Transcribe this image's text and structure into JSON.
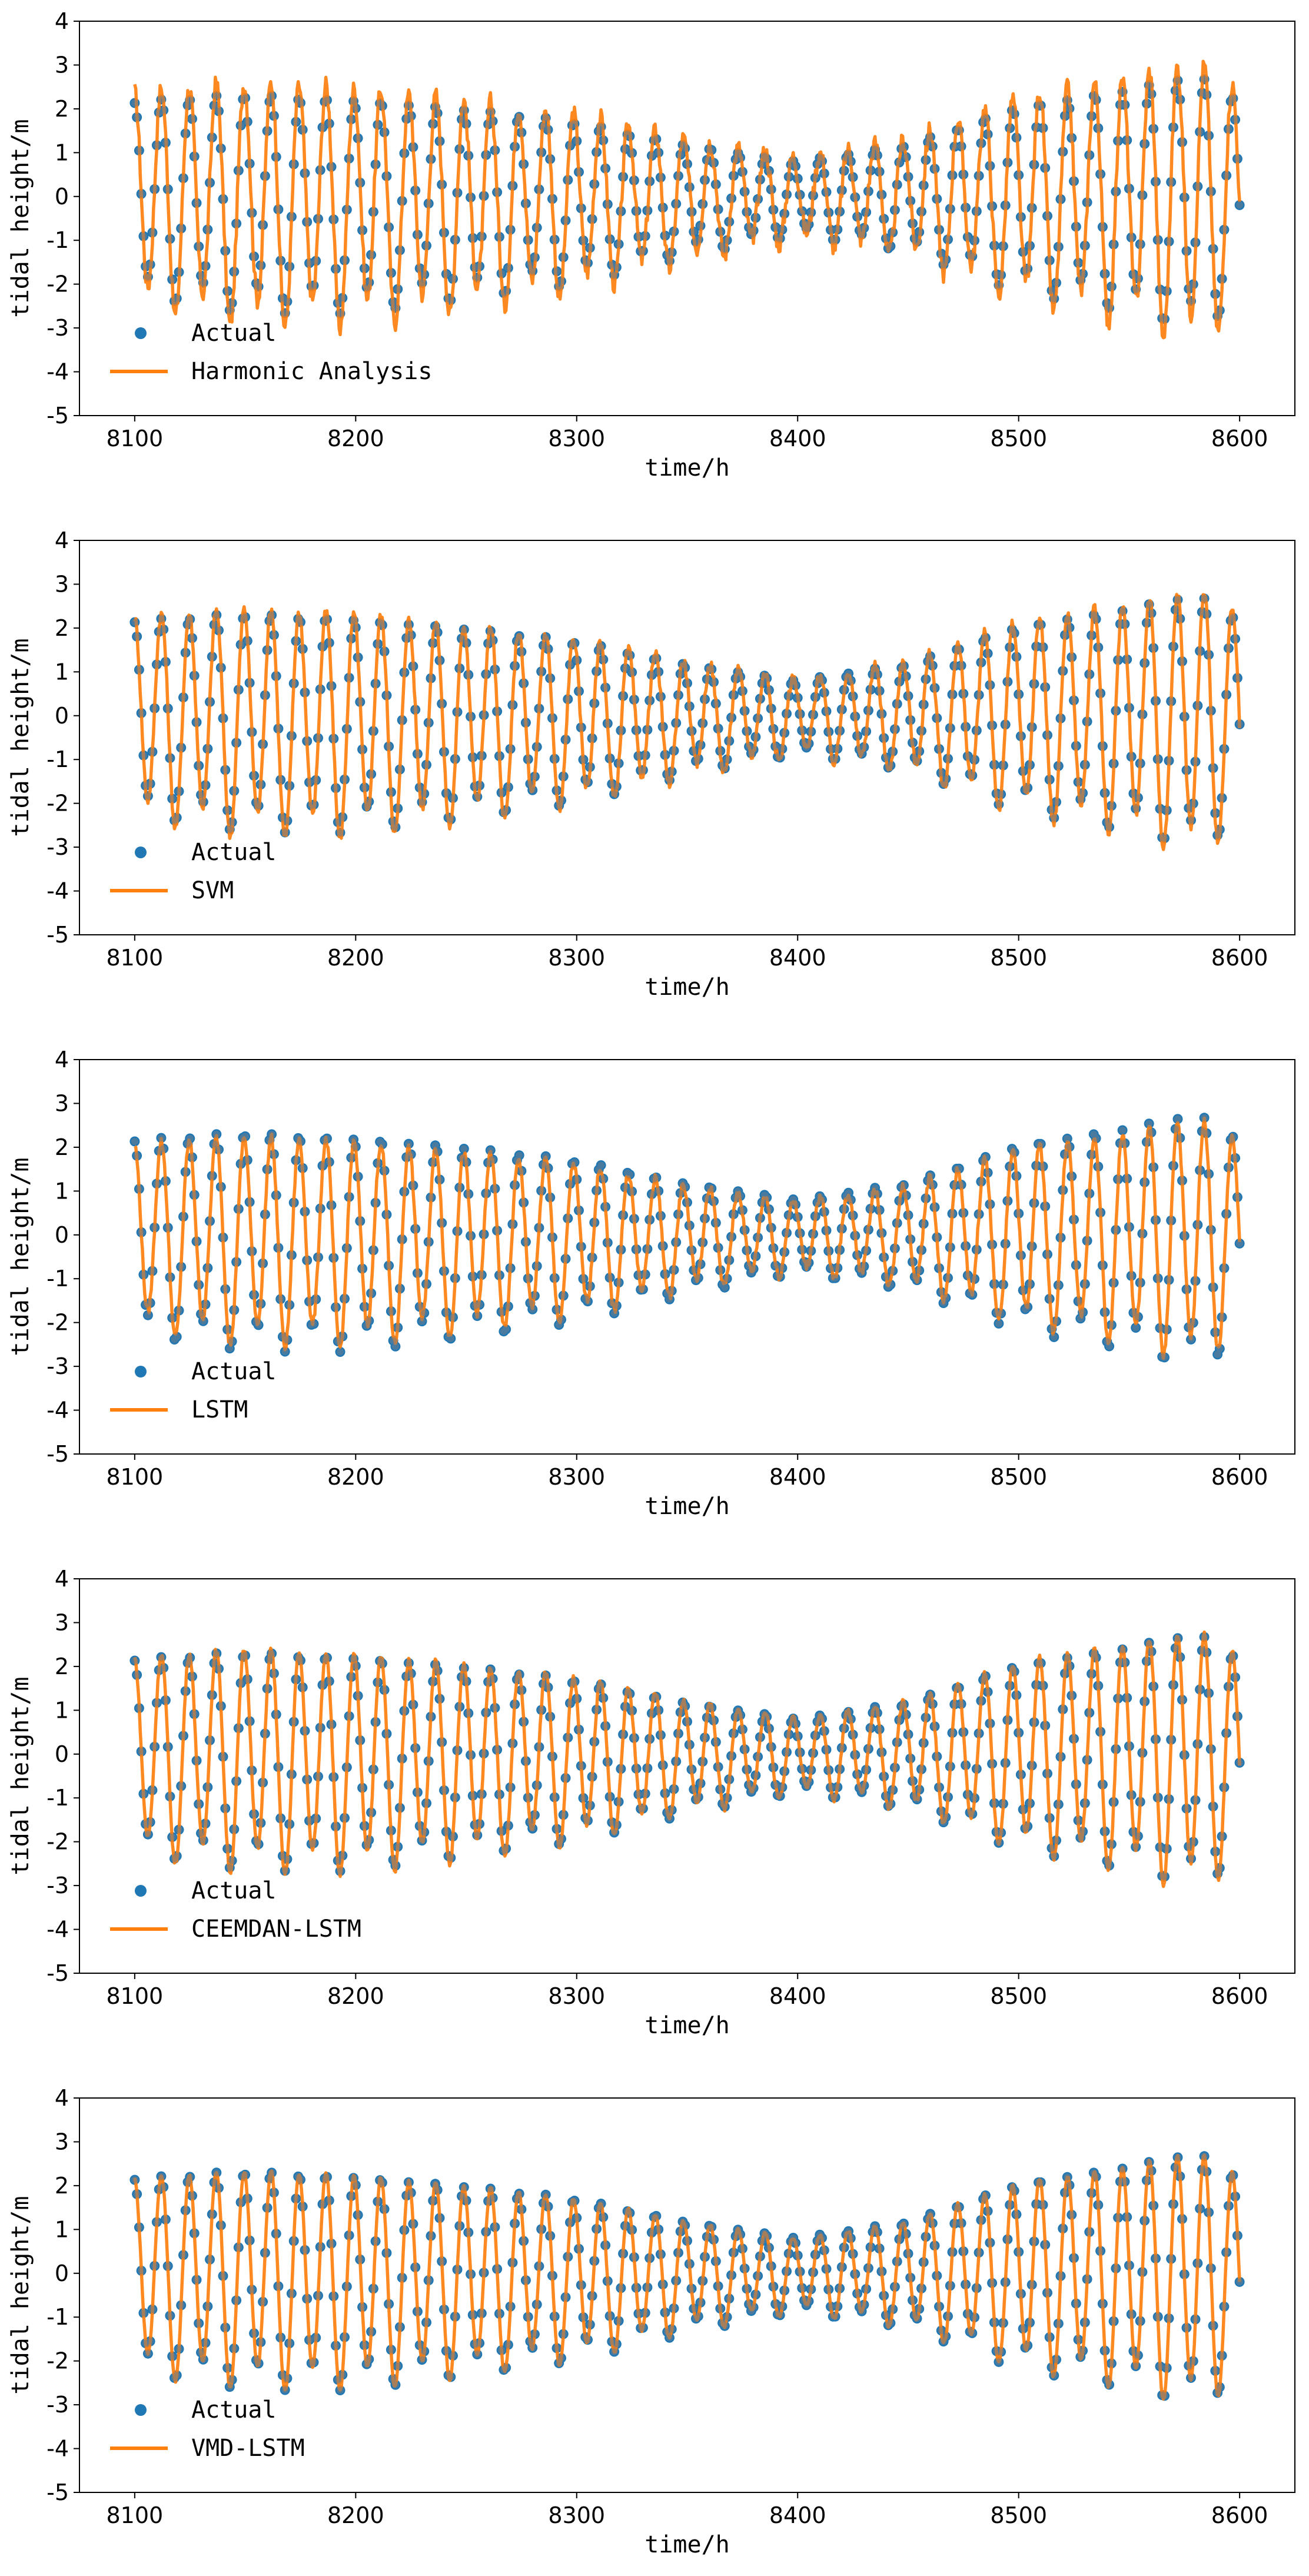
{
  "chart_data": [
    {
      "type": "line",
      "xlabel": "time/h",
      "ylabel": "tidal height/m",
      "xlim": [
        8075,
        8625
      ],
      "ylim": [
        -5,
        4
      ],
      "xticks": [
        8100,
        8200,
        8300,
        8400,
        8500,
        8600
      ],
      "yticks": [
        -5,
        -4,
        -3,
        -2,
        -1,
        0,
        1,
        2,
        3,
        4
      ],
      "legend": "lower-left",
      "series": [
        {
          "name": "Actual",
          "kind": "scatter",
          "color": "#1f77b4"
        },
        {
          "name": "Harmonic Analysis",
          "kind": "line",
          "color": "#ff7f0e"
        }
      ]
    },
    {
      "type": "line",
      "xlabel": "time/h",
      "ylabel": "tidal height/m",
      "xlim": [
        8075,
        8625
      ],
      "ylim": [
        -5,
        4
      ],
      "xticks": [
        8100,
        8200,
        8300,
        8400,
        8500,
        8600
      ],
      "yticks": [
        -5,
        -4,
        -3,
        -2,
        -1,
        0,
        1,
        2,
        3,
        4
      ],
      "legend": "lower-left",
      "series": [
        {
          "name": "Actual",
          "kind": "scatter",
          "color": "#1f77b4"
        },
        {
          "name": "SVM",
          "kind": "line",
          "color": "#ff7f0e"
        }
      ]
    },
    {
      "type": "line",
      "xlabel": "time/h",
      "ylabel": "tidal height/m",
      "xlim": [
        8075,
        8625
      ],
      "ylim": [
        -5,
        4
      ],
      "xticks": [
        8100,
        8200,
        8300,
        8400,
        8500,
        8600
      ],
      "yticks": [
        -5,
        -4,
        -3,
        -2,
        -1,
        0,
        1,
        2,
        3,
        4
      ],
      "legend": "lower-left",
      "series": [
        {
          "name": "Actual",
          "kind": "scatter",
          "color": "#1f77b4"
        },
        {
          "name": "LSTM",
          "kind": "line",
          "color": "#ff7f0e"
        }
      ]
    },
    {
      "type": "line",
      "xlabel": "time/h",
      "ylabel": "tidal height/m",
      "xlim": [
        8075,
        8625
      ],
      "ylim": [
        -5,
        4
      ],
      "xticks": [
        8100,
        8200,
        8300,
        8400,
        8500,
        8600
      ],
      "yticks": [
        -5,
        -4,
        -3,
        -2,
        -1,
        0,
        1,
        2,
        3,
        4
      ],
      "legend": "lower-left",
      "series": [
        {
          "name": "Actual",
          "kind": "scatter",
          "color": "#1f77b4"
        },
        {
          "name": "CEEMDAN-LSTM",
          "kind": "line",
          "color": "#ff7f0e"
        }
      ]
    },
    {
      "type": "line",
      "xlabel": "time/h",
      "ylabel": "tidal height/m",
      "xlim": [
        8075,
        8625
      ],
      "ylim": [
        -5,
        4
      ],
      "xticks": [
        8100,
        8200,
        8300,
        8400,
        8500,
        8600
      ],
      "yticks": [
        -5,
        -4,
        -3,
        -2,
        -1,
        0,
        1,
        2,
        3,
        4
      ],
      "legend": "lower-left",
      "series": [
        {
          "name": "Actual",
          "kind": "scatter",
          "color": "#1f77b4"
        },
        {
          "name": "VMD-LSTM",
          "kind": "line",
          "color": "#ff7f0e"
        }
      ]
    }
  ],
  "actual_series": {
    "x_start": 8100,
    "x_end": 8600,
    "step_h": 1,
    "period_h": 12.42,
    "amplitude_envelope_m": {
      "x": [
        8100,
        8150,
        8200,
        8250,
        8300,
        8350,
        8400,
        8450,
        8500,
        8550,
        8580,
        8600
      ],
      "a": [
        2.1,
        2.35,
        2.3,
        2.05,
        1.75,
        1.2,
        0.8,
        1.15,
        2.0,
        2.4,
        2.75,
        2.2
      ]
    },
    "mean_level_envelope_m": {
      "x": [
        8100,
        8200,
        8300,
        8400,
        8500,
        8600
      ],
      "m": [
        0.05,
        -0.1,
        -0.05,
        0.0,
        0.05,
        0.0
      ]
    }
  }
}
